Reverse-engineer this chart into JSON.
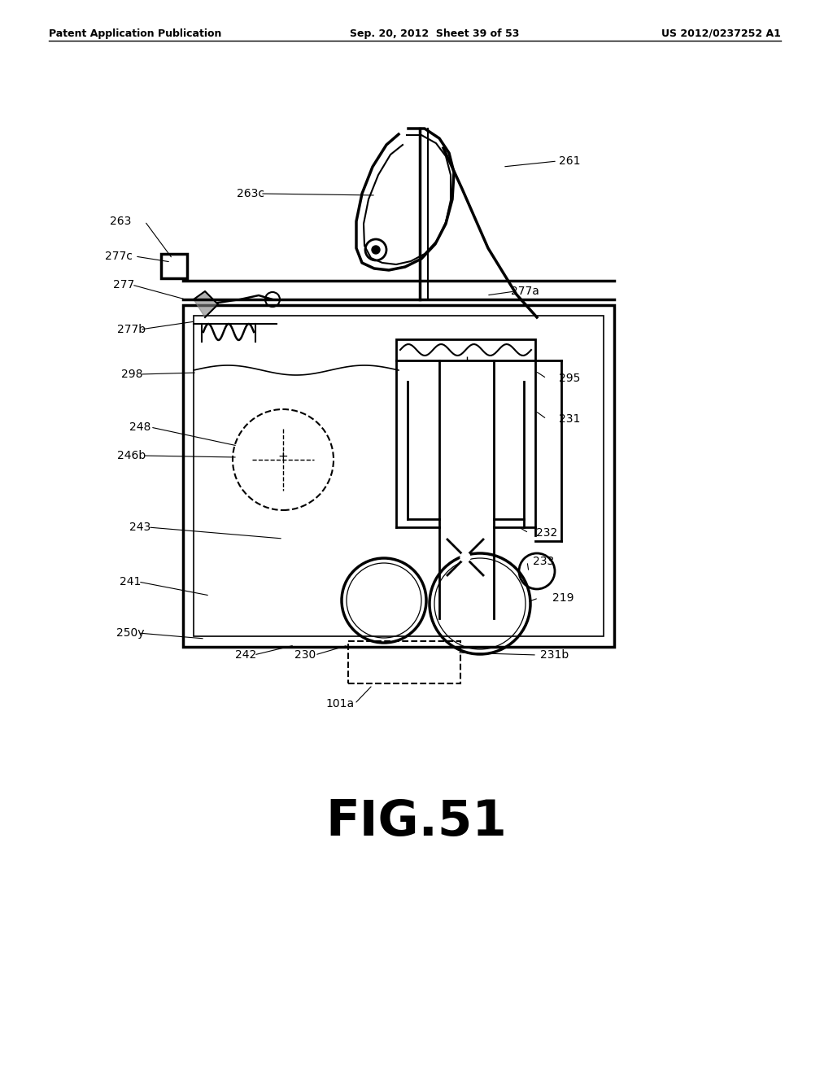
{
  "bg_color": "#ffffff",
  "line_color": "#000000",
  "header_left": "Patent Application Publication",
  "header_mid": "Sep. 20, 2012  Sheet 39 of 53",
  "header_right": "US 2012/0237252 A1",
  "figure_label": "FIG.51"
}
